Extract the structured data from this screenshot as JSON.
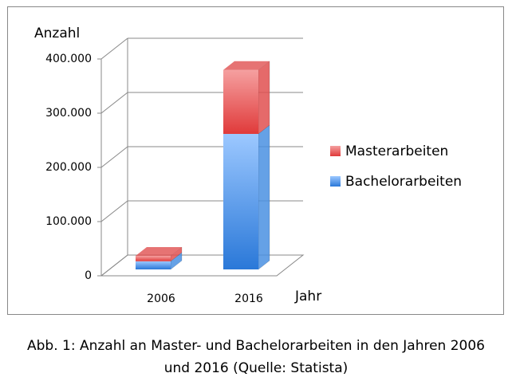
{
  "chart_data": {
    "type": "bar3d-stacked",
    "y_label": "Anzahl",
    "x_label": "Jahr",
    "categories": [
      "2006",
      "2016"
    ],
    "series": [
      {
        "name": "Bachelorarbeiten",
        "color": "#4a90e2",
        "values": [
          15000,
          250000
        ]
      },
      {
        "name": "Masterarbeiten",
        "color": "#e05050",
        "values": [
          10000,
          118000
        ]
      }
    ],
    "ylim": [
      0,
      400000
    ],
    "yticks": [
      0,
      {
        "value": 100000,
        "label": "100.000"
      },
      {
        "value": 200000,
        "label": "200.000"
      },
      {
        "value": 300000,
        "label": "300.000"
      },
      {
        "value": 400000,
        "label": "400.000"
      }
    ],
    "grid": true
  },
  "caption": [
    "Abb. 1: Anzahl an Master- und Bachelorarbeiten in den Jahren 2006",
    "und 2016 (Quelle: Statista)"
  ]
}
